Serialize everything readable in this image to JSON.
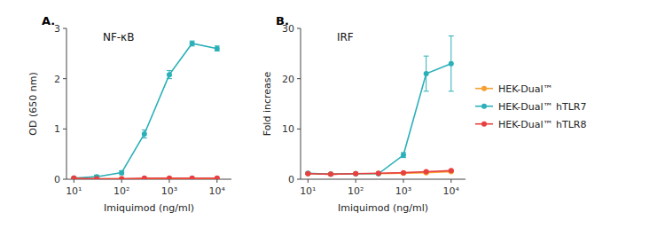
{
  "chart_data": [
    {
      "type": "line",
      "title": "NF-κB",
      "annotations": [
        "A."
      ],
      "x_label": "Imiquimod (ng/ml)",
      "y_label": "OD (650 nm)",
      "log": "x",
      "grid": false,
      "legend": "right",
      "marker": "circle",
      "line_style": "solid",
      "x": [
        10,
        30,
        100,
        300,
        1000,
        3000,
        10000
      ],
      "xlim": [
        7,
        20000
      ],
      "xticks": [
        {
          "value": 10,
          "label": "10¹"
        },
        {
          "value": 100,
          "label": "10²"
        },
        {
          "value": 1000,
          "label": "10³"
        },
        {
          "value": 10000,
          "label": "10⁴"
        }
      ],
      "ylim": [
        0,
        3
      ],
      "yticks": [
        0,
        1,
        2,
        3
      ],
      "series": [
        {
          "name": "HEK-Dual™",
          "color": "#f5a030",
          "values": [
            0.02,
            0.01,
            0.01,
            0.01,
            0.01,
            0.01,
            0.01
          ],
          "errors": [
            0.01,
            0.01,
            0.01,
            0.005,
            0.005,
            0.005,
            0.005
          ]
        },
        {
          "name": "HEK-Dual™ hTLR7",
          "color": "#2ab0b8",
          "values": [
            0.02,
            0.05,
            0.13,
            0.9,
            2.08,
            2.7,
            2.6
          ],
          "errors": [
            0.01,
            0.03,
            0.04,
            0.08,
            0.08,
            0.05,
            0.05
          ]
        },
        {
          "name": "HEK-Dual™ hTLR8",
          "color": "#e84040",
          "values": [
            0.02,
            0.01,
            0.01,
            0.02,
            0.02,
            0.02,
            0.02
          ],
          "errors": [
            0.01,
            0.01,
            0.01,
            0.01,
            0.01,
            0.01,
            0.01
          ]
        }
      ]
    },
    {
      "type": "line",
      "title": "IRF",
      "annotations": [
        "B."
      ],
      "x_label": "Imiquimod (ng/ml)",
      "y_label": "Fold increase",
      "log": "x",
      "grid": false,
      "marker": "circle",
      "line_style": "solid",
      "x": [
        10,
        30,
        100,
        300,
        1000,
        3000,
        10000
      ],
      "xlim": [
        7,
        20000
      ],
      "xticks": [
        {
          "value": 10,
          "label": "10¹"
        },
        {
          "value": 100,
          "label": "10²"
        },
        {
          "value": 1000,
          "label": "10³"
        },
        {
          "value": 10000,
          "label": "10⁴"
        }
      ],
      "ylim": [
        0,
        30
      ],
      "yticks": [
        0,
        10,
        20,
        30
      ],
      "series": [
        {
          "name": "HEK-Dual™",
          "color": "#f5a030",
          "values": [
            1.1,
            1.0,
            1.1,
            1.1,
            1.2,
            1.3,
            1.5
          ],
          "errors": [
            0.1,
            0.05,
            0.05,
            0.05,
            0.05,
            0.05,
            0.1
          ]
        },
        {
          "name": "HEK-Dual™ hTLR7",
          "color": "#2ab0b8",
          "values": [
            1.2,
            1.0,
            1.1,
            1.1,
            4.8,
            21.0,
            23.0
          ],
          "errors": [
            0.2,
            0.1,
            0.1,
            0.1,
            0.5,
            3.5,
            5.5
          ]
        },
        {
          "name": "HEK-Dual™ hTLR8",
          "color": "#e84040",
          "values": [
            1.1,
            1.0,
            1.1,
            1.2,
            1.3,
            1.5,
            1.7
          ],
          "errors": [
            0.1,
            0.05,
            0.05,
            0.05,
            0.1,
            0.1,
            0.1
          ]
        }
      ]
    }
  ]
}
